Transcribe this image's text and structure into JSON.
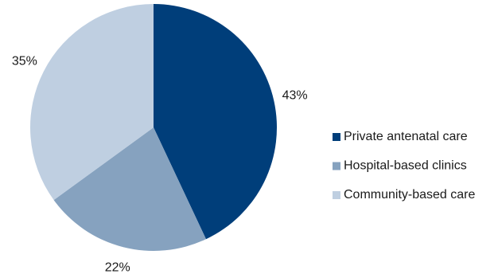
{
  "chart_data": {
    "type": "pie",
    "categories": [
      "Private antenatal care",
      "Hospital-based clinics",
      "Community-based care"
    ],
    "values": [
      43,
      22,
      35
    ],
    "value_labels": [
      "43%",
      "22%",
      "35%"
    ],
    "colors": [
      "#003e7a",
      "#86a2bf",
      "#bfcfe1"
    ],
    "legend": "right"
  }
}
